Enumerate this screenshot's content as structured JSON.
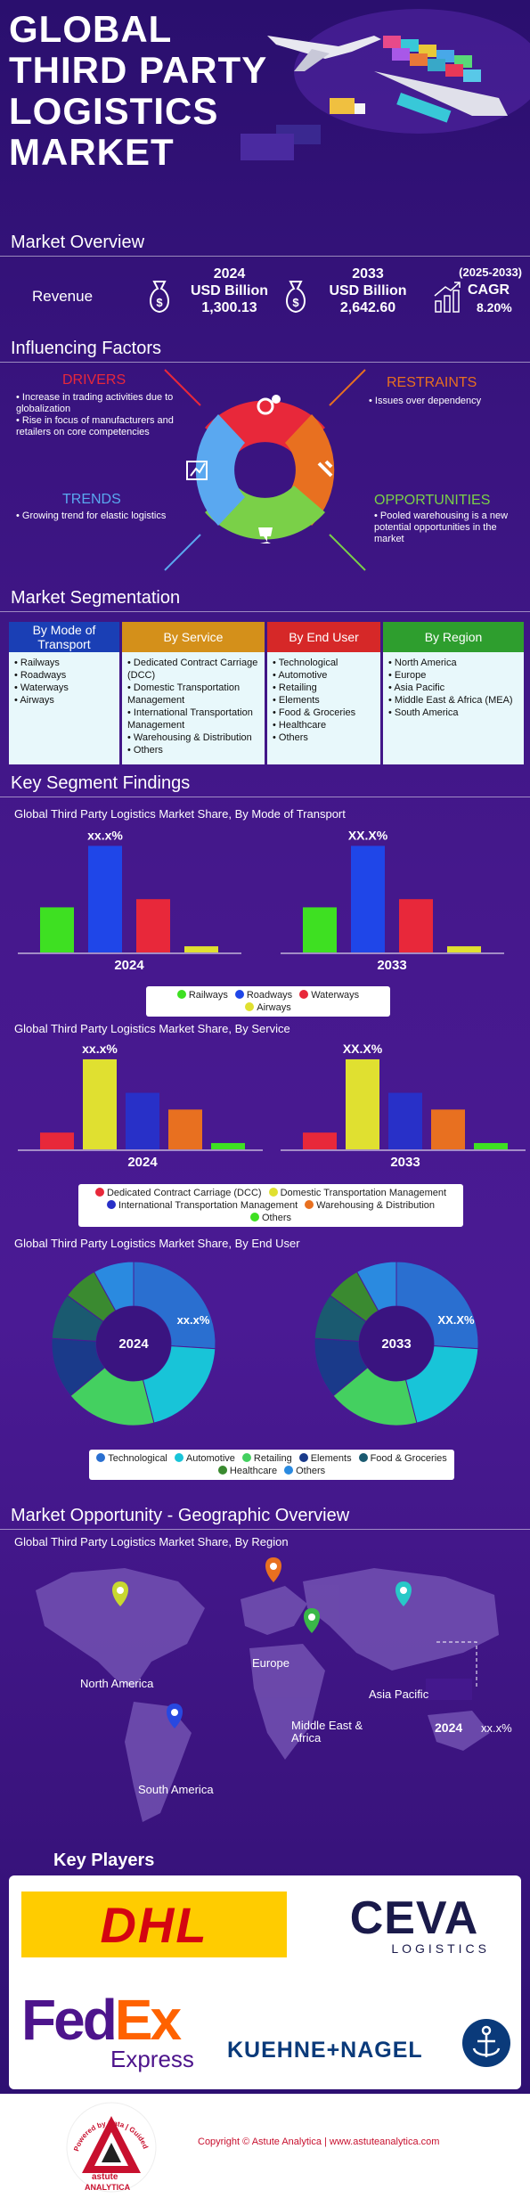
{
  "title_lines": [
    "GLOBAL",
    "THIRD PARTY",
    "LOGISTICS",
    "MARKET"
  ],
  "overview": {
    "heading": "Market Overview",
    "revenue_label": "Revenue",
    "y2024": {
      "year": "2024",
      "unit": "USD Billion",
      "value": "1,300.13"
    },
    "y2033": {
      "year": "2033",
      "unit": "USD Billion",
      "value": "2,642.60"
    },
    "cagr": {
      "period": "(2025-2033)",
      "label": "CAGR",
      "value": "8.20%"
    }
  },
  "factors": {
    "heading": "Influencing Factors",
    "drivers": {
      "title": "DRIVERS",
      "items": [
        "Increase in trading activities due to globalization",
        "Rise in focus of manufacturers and retailers on core competencies"
      ]
    },
    "restraints": {
      "title": "RESTRAINTS",
      "items": [
        "Issues over dependency"
      ]
    },
    "trends": {
      "title": "TRENDS",
      "items": [
        "Growing trend for elastic logistics"
      ]
    },
    "opportunities": {
      "title": "OPPORTUNITIES",
      "items": [
        "Pooled warehousing is a new potential opportunities in the market"
      ]
    }
  },
  "segmentation": {
    "heading": "Market Segmentation",
    "columns": [
      {
        "title": "By Mode of Transport",
        "color": "#1a3fb5",
        "items": [
          "Railways",
          "Roadways",
          "Waterways",
          "Airways"
        ]
      },
      {
        "title": "By Service",
        "color": "#d4901a",
        "items": [
          "Dedicated Contract Carriage (DCC)",
          "Domestic Transportation Management",
          "International Transportation Management",
          "Warehousing & Distribution",
          "Others"
        ]
      },
      {
        "title": "By End User",
        "color": "#d62828",
        "items": [
          "Technological",
          "Automotive",
          "Retailing",
          "Elements",
          "Food & Groceries",
          "Healthcare",
          "Others"
        ]
      },
      {
        "title": "By Region",
        "color": "#2e9e2e",
        "items": [
          "North America",
          "Europe",
          "Asia Pacific",
          "Middle East & Africa (MEA)",
          "South America"
        ]
      }
    ]
  },
  "findings": {
    "heading": "Key Segment Findings",
    "transport_title": "Global Third Party Logistics Market Share, By Mode of Transport",
    "service_title": "Global Third Party Logistics Market Share, By Service",
    "enduser_title": "Global Third Party Logistics Market Share, By End User",
    "label_2024_t": "xx.x%",
    "label_2033_t": "XX.X%",
    "label_2024_s": "xx.x%",
    "label_2033_s": "XX.X%",
    "label_2024_e": "xx.x%",
    "label_2033_e": "XX.X%"
  },
  "chart_data": [
    {
      "type": "bar",
      "title": "Global Third Party Logistics Market Share, By Mode of Transport",
      "categories": [
        "Railways",
        "Roadways",
        "Waterways",
        "Airways"
      ],
      "colors": [
        "#3ee022",
        "#1f46e8",
        "#e8283a",
        "#e0e030"
      ],
      "series": [
        {
          "name": "2024",
          "values": [
            22,
            52,
            26,
            3
          ]
        },
        {
          "name": "2033",
          "values": [
            22,
            52,
            26,
            3
          ]
        }
      ]
    },
    {
      "type": "bar",
      "title": "Global Third Party Logistics Market Share, By Service",
      "categories": [
        "Dedicated Contract Carriage (DCC)",
        "Domestic Transportation Management",
        "International Transportation Management",
        "Warehousing & Distribution",
        "Others"
      ],
      "colors": [
        "#e8283a",
        "#e0e030",
        "#2830c8",
        "#e87020",
        "#3ee022"
      ],
      "series": [
        {
          "name": "2024",
          "values": [
            8,
            43,
            27,
            19,
            3
          ]
        },
        {
          "name": "2033",
          "values": [
            8,
            43,
            27,
            19,
            3
          ]
        }
      ]
    },
    {
      "type": "pie",
      "title": "Global Third Party Logistics Market Share, By End User",
      "categories": [
        "Technological",
        "Automotive",
        "Retailing",
        "Elements",
        "Food & Groceries",
        "Healthcare",
        "Others"
      ],
      "colors": [
        "#2a6fd0",
        "#18c4d8",
        "#44d060",
        "#1a3a8a",
        "#1a5a70",
        "#3a8a30",
        "#2a8ae0"
      ],
      "series": [
        {
          "name": "2024",
          "values": [
            26,
            20,
            18,
            12,
            9,
            7,
            8
          ]
        },
        {
          "name": "2033",
          "values": [
            26,
            20,
            18,
            12,
            9,
            7,
            8
          ]
        }
      ]
    }
  ],
  "legends": {
    "transport": [
      "Railways",
      "Roadways",
      "Waterways",
      "Airways"
    ],
    "service": [
      "Dedicated Contract Carriage (DCC)",
      "Domestic Transportation Management",
      "International Transportation Management",
      "Warehousing & Distribution",
      "Others"
    ],
    "enduser": [
      "Technological",
      "Automotive",
      "Retailing",
      "Elements",
      "Food & Groceries",
      "Healthcare",
      "Others"
    ]
  },
  "geo": {
    "heading": "Market Opportunity - Geographic Overview",
    "subtitle": "Global Third Party Logistics Market Share, By Region",
    "regions": [
      "North America",
      "Europe",
      "Asia Pacific",
      "Middle East & Africa",
      "South America"
    ],
    "year": "2024",
    "value": "xx.x%"
  },
  "players": {
    "heading": "Key Players",
    "dhl": "DHL",
    "ceva": "CEVA",
    "ceva_sub": "LOGISTICS",
    "fed": "Fed",
    "ex": "Ex",
    "express": "Express",
    "kn": "KUEHNE+NAGEL"
  },
  "footer": {
    "copyright": "Copyright © Astute Analytica  |  www.astuteanalytica.com",
    "brand": "astute",
    "brand2": "ANALYTICA",
    "tagline": "Powered by Data | Guided by Intelligence"
  }
}
